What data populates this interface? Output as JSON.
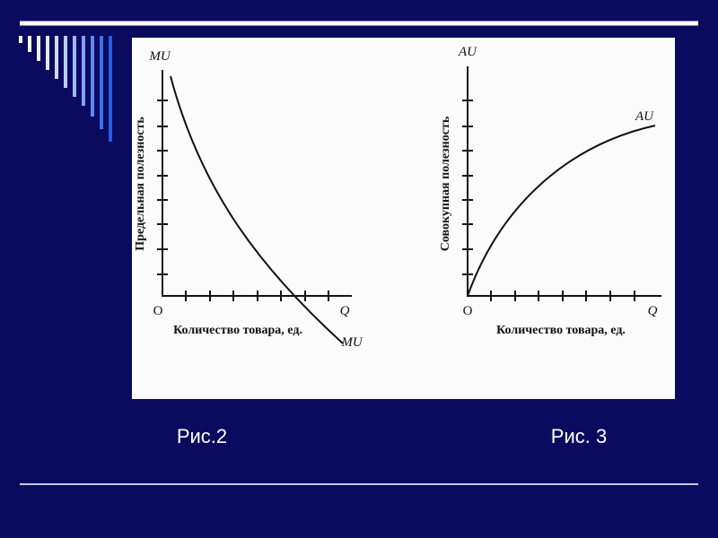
{
  "slide": {
    "figures": [
      {
        "y_axis_label": "MU",
        "y_axis_title": "Предельная полезность",
        "origin": "O",
        "x_axis_label": "Q",
        "x_axis_title": "Количество товара, ед.",
        "curve_label": "MU",
        "caption": "Рис.2"
      },
      {
        "y_axis_label": "AU",
        "y_axis_title": "Совокупная полезность",
        "origin": "O",
        "x_axis_label": "Q",
        "x_axis_title": "Количество товара, ед.",
        "curve_label": "AU",
        "caption": "Рис. 3"
      }
    ]
  }
}
